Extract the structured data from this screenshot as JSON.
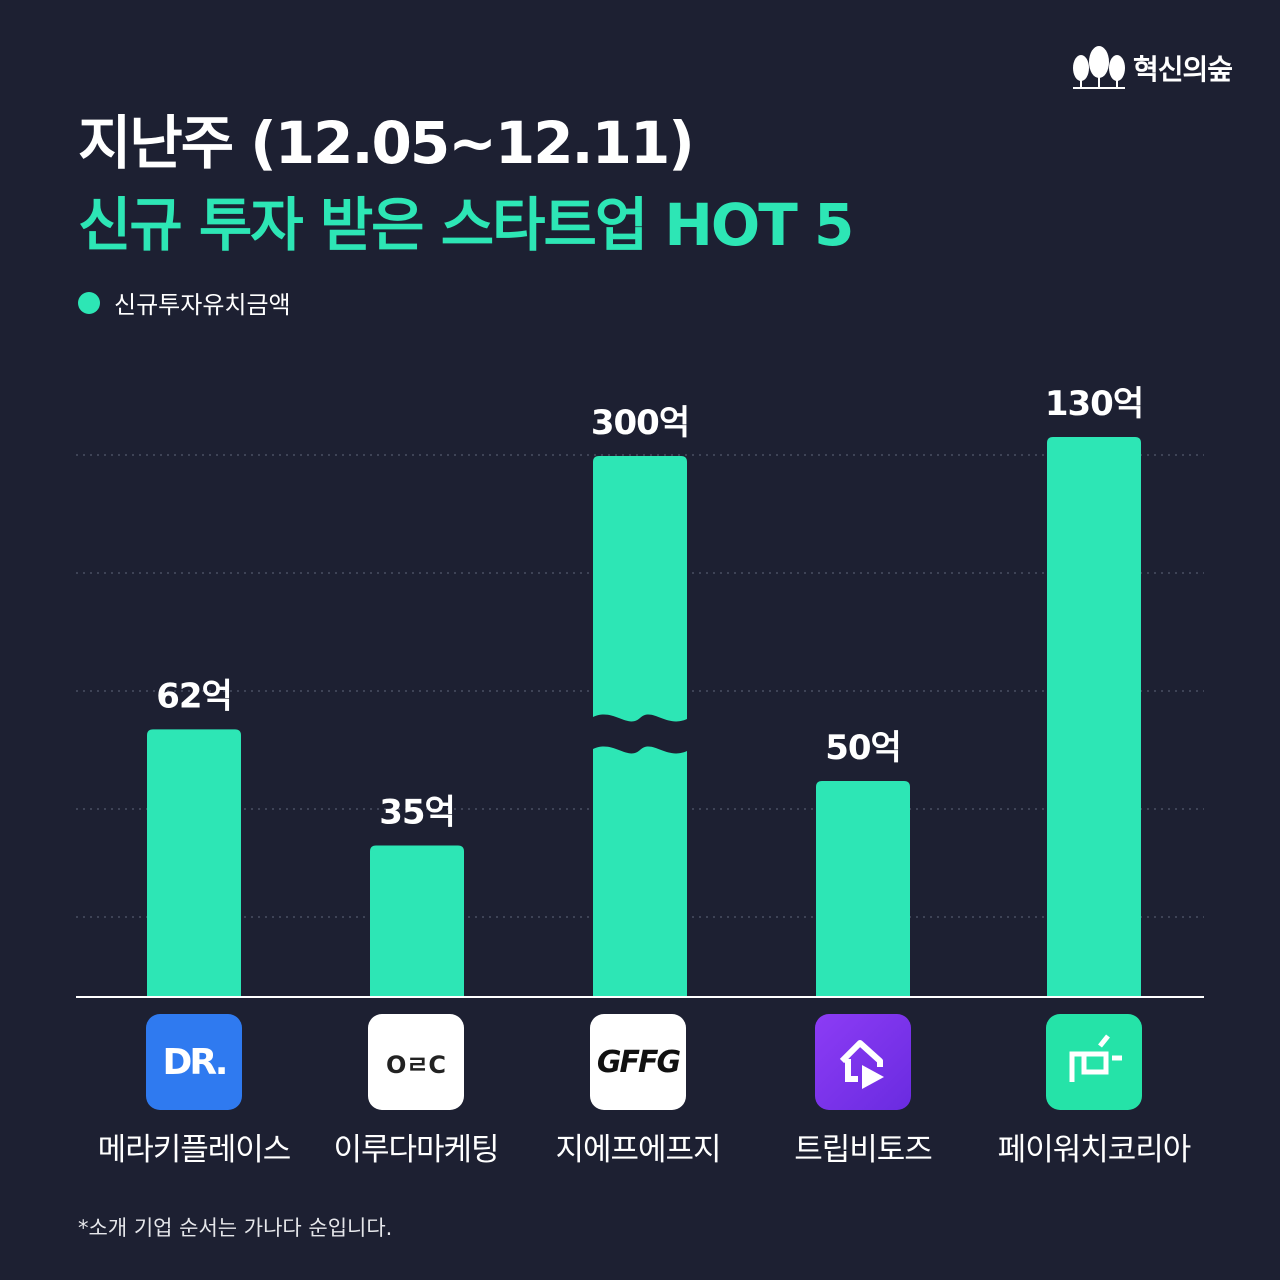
{
  "header": {
    "title_line1": "지난주 (12.05~12.11)",
    "title_line2": "신규 투자 받은 스타트업 HOT 5",
    "accent_color": "#2de6b5",
    "background_color": "#1d2032"
  },
  "brand": {
    "icon": "forest-trees-icon",
    "label": "혁신의숲"
  },
  "chart_data": {
    "type": "bar",
    "legend": {
      "position": "top-left",
      "entries": [
        "신규투자유치금액"
      ]
    },
    "categories": [
      "메라키플레이스",
      "이루다마케팅",
      "지에프에프지",
      "트립비토즈",
      "페이워치코리아"
    ],
    "series": [
      {
        "name": "신규투자유치금액",
        "values": [
          62,
          35,
          300,
          50,
          130
        ],
        "color": "#2de6b5"
      }
    ],
    "data_labels": [
      "62억",
      "35억",
      "300억",
      "50억",
      "130억"
    ],
    "axis_break": {
      "category": "지에프에프지"
    },
    "grid": true,
    "grid_style": "dotted",
    "y_axis_visible": false
  },
  "logos": [
    {
      "icon": "dr-logo-icon",
      "text": "DR."
    },
    {
      "icon": "orc-logo-icon",
      "text": "OㄹC"
    },
    {
      "icon": "gffg-logo-icon",
      "text": "GFFG"
    },
    {
      "icon": "tripbtoz-logo-icon"
    },
    {
      "icon": "paywatch-logo-icon"
    }
  ],
  "footnote": "*소개 기업 순서는 가나다 순입니다."
}
